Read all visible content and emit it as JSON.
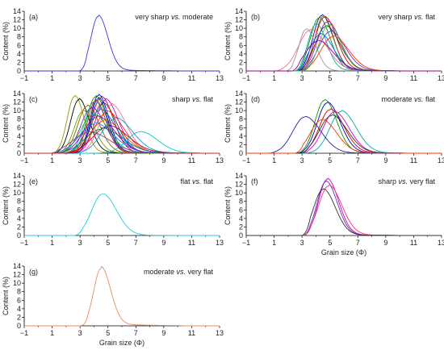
{
  "chart_data": [
    {
      "type": "line",
      "panel": "(a)",
      "title": "very sharp vs. moderate",
      "title_italic_part": "vs.",
      "ylabel": "Content (%)",
      "xlabel": "",
      "xlim": [
        -1,
        13
      ],
      "ylim": [
        0,
        14
      ],
      "xticks": [
        "-1",
        "1",
        "3",
        "5",
        "7",
        "9",
        "11",
        "13"
      ],
      "yticks": [
        "2",
        "4",
        "6",
        "8",
        "10",
        "12",
        "14"
      ],
      "series": [
        {
          "color": "#3a3ad8",
          "peak_x": 4.3,
          "peak_y": 12.8,
          "width": 0.55,
          "start": 2.9,
          "end": 10.5,
          "tail": 0.22
        }
      ]
    },
    {
      "type": "line",
      "panel": "(b)",
      "title": "very sharp vs. flat",
      "title_italic_part": "vs.",
      "ylabel": "Content (%)",
      "xlabel": "",
      "xlim": [
        -1,
        13
      ],
      "ylim": [
        0,
        14
      ],
      "xticks": [
        "-1",
        "1",
        "3",
        "5",
        "7",
        "9",
        "11",
        "13"
      ],
      "yticks": [
        "2",
        "4",
        "6",
        "8",
        "10",
        "12",
        "14"
      ],
      "series": [
        {
          "color": "#0000cc",
          "peak_x": 4.4,
          "peak_y": 13.0,
          "width": 0.65,
          "start": 2.6,
          "end": 9.5,
          "tail": 0.15
        },
        {
          "color": "#cc0000",
          "peak_x": 4.6,
          "peak_y": 12.6,
          "width": 0.7,
          "start": 2.7,
          "end": 9.6,
          "tail": 0.15
        },
        {
          "color": "#009900",
          "peak_x": 4.2,
          "peak_y": 12.4,
          "width": 0.65,
          "start": 2.5,
          "end": 9.4,
          "tail": 0.15
        },
        {
          "color": "#cc00cc",
          "peak_x": 4.8,
          "peak_y": 11.5,
          "width": 0.75,
          "start": 2.8,
          "end": 9.8,
          "tail": 0.18
        },
        {
          "color": "#00aaaa",
          "peak_x": 4.0,
          "peak_y": 11.0,
          "width": 0.6,
          "start": 2.4,
          "end": 9.2,
          "tail": 0.12
        },
        {
          "color": "#886600",
          "peak_x": 4.5,
          "peak_y": 12.8,
          "width": 0.6,
          "start": 2.8,
          "end": 9.5,
          "tail": 0.12
        },
        {
          "color": "#333333",
          "peak_x": 4.7,
          "peak_y": 10.4,
          "width": 0.8,
          "start": 2.7,
          "end": 10.0,
          "tail": 0.2
        },
        {
          "color": "#ff6699",
          "peak_x": 3.6,
          "peak_y": 9.6,
          "width": 0.9,
          "start": 1.0,
          "end": 9.8,
          "tail": 0.2
        },
        {
          "color": "#999999",
          "peak_x": 3.3,
          "peak_y": 9.8,
          "width": 0.55,
          "start": 1.8,
          "end": 8.5,
          "tail": 0.1
        },
        {
          "color": "#6633cc",
          "peak_x": 5.0,
          "peak_y": 9.2,
          "width": 0.85,
          "start": 2.9,
          "end": 10.2,
          "tail": 0.25
        },
        {
          "color": "#0066ff",
          "peak_x": 4.3,
          "peak_y": 8.6,
          "width": 0.75,
          "start": 2.6,
          "end": 9.6,
          "tail": 0.2
        },
        {
          "color": "#ff3300",
          "peak_x": 5.2,
          "peak_y": 8.0,
          "width": 0.9,
          "start": 3.0,
          "end": 10.5,
          "tail": 0.25
        },
        {
          "color": "#33cc33",
          "peak_x": 4.9,
          "peak_y": 10.8,
          "width": 0.7,
          "start": 2.9,
          "end": 9.8,
          "tail": 0.15
        },
        {
          "color": "#990099",
          "peak_x": 4.1,
          "peak_y": 7.0,
          "width": 0.9,
          "start": 2.3,
          "end": 10.0,
          "tail": 0.25
        }
      ]
    },
    {
      "type": "line",
      "panel": "(c)",
      "title": "sharp vs. flat",
      "title_italic_part": "vs.",
      "ylabel": "Content (%)",
      "xlabel": "",
      "xlim": [
        -1,
        13
      ],
      "ylim": [
        0,
        14
      ],
      "xticks": [
        "-1",
        "1",
        "3",
        "5",
        "7",
        "9",
        "11",
        "13"
      ],
      "yticks": [
        "2",
        "4",
        "6",
        "8",
        "10",
        "12",
        "14"
      ],
      "series": [
        {
          "color": "#999900",
          "peak_x": 2.6,
          "peak_y": 13.3,
          "width": 0.55,
          "start": 0.8,
          "end": 9.0,
          "tail": 0.2
        },
        {
          "color": "#000000",
          "peak_x": 2.9,
          "peak_y": 12.5,
          "width": 0.6,
          "start": 0.9,
          "end": 9.5,
          "tail": 0.25
        },
        {
          "color": "#0000cc",
          "peak_x": 4.3,
          "peak_y": 13.5,
          "width": 0.6,
          "start": 1.5,
          "end": 10.0,
          "tail": 0.2
        },
        {
          "color": "#cc0000",
          "peak_x": 4.5,
          "peak_y": 13.0,
          "width": 0.7,
          "start": 1.6,
          "end": 10.2,
          "tail": 0.25
        },
        {
          "color": "#009900",
          "peak_x": 4.1,
          "peak_y": 13.2,
          "width": 0.65,
          "start": 1.4,
          "end": 9.8,
          "tail": 0.2
        },
        {
          "color": "#cc00cc",
          "peak_x": 4.8,
          "peak_y": 12.4,
          "width": 0.75,
          "start": 1.8,
          "end": 10.5,
          "tail": 0.3
        },
        {
          "color": "#00aaaa",
          "peak_x": 4.0,
          "peak_y": 12.0,
          "width": 0.7,
          "start": 1.5,
          "end": 10.2,
          "tail": 0.3
        },
        {
          "color": "#886600",
          "peak_x": 3.5,
          "peak_y": 11.0,
          "width": 0.7,
          "start": 1.2,
          "end": 9.8,
          "tail": 0.25
        },
        {
          "color": "#333333",
          "peak_x": 4.6,
          "peak_y": 11.5,
          "width": 0.8,
          "start": 1.6,
          "end": 10.6,
          "tail": 0.3
        },
        {
          "color": "#ff6699",
          "peak_x": 5.2,
          "peak_y": 11.2,
          "width": 0.85,
          "start": 2.0,
          "end": 11.0,
          "tail": 0.35
        },
        {
          "color": "#6633cc",
          "peak_x": 3.8,
          "peak_y": 10.5,
          "width": 0.8,
          "start": 1.3,
          "end": 10.0,
          "tail": 0.3
        },
        {
          "color": "#0066ff",
          "peak_x": 4.4,
          "peak_y": 10.0,
          "width": 0.9,
          "start": 1.5,
          "end": 10.8,
          "tail": 0.35
        },
        {
          "color": "#ff3300",
          "peak_x": 4.9,
          "peak_y": 9.5,
          "width": 0.95,
          "start": 1.7,
          "end": 11.2,
          "tail": 0.4
        },
        {
          "color": "#33cc33",
          "peak_x": 3.9,
          "peak_y": 9.0,
          "width": 0.9,
          "start": 1.2,
          "end": 10.5,
          "tail": 0.35
        },
        {
          "color": "#990099",
          "peak_x": 4.2,
          "peak_y": 8.4,
          "width": 1.0,
          "start": 1.3,
          "end": 11.0,
          "tail": 0.4
        },
        {
          "color": "#0099cc",
          "peak_x": 5.5,
          "peak_y": 8.0,
          "width": 1.0,
          "start": 2.2,
          "end": 11.5,
          "tail": 0.45
        },
        {
          "color": "#66aa00",
          "peak_x": 3.2,
          "peak_y": 9.8,
          "width": 0.65,
          "start": 1.0,
          "end": 9.5,
          "tail": 0.25
        },
        {
          "color": "#cc6600",
          "peak_x": 4.7,
          "peak_y": 7.5,
          "width": 1.05,
          "start": 1.6,
          "end": 11.5,
          "tail": 0.45
        },
        {
          "color": "#3366ff",
          "peak_x": 4.0,
          "peak_y": 6.8,
          "width": 1.1,
          "start": 1.1,
          "end": 11.2,
          "tail": 0.5
        },
        {
          "color": "#aa0044",
          "peak_x": 5.0,
          "peak_y": 6.2,
          "width": 1.15,
          "start": 1.8,
          "end": 12.0,
          "tail": 0.5
        },
        {
          "color": "#008866",
          "peak_x": 4.5,
          "peak_y": 5.6,
          "width": 1.2,
          "start": 1.4,
          "end": 11.8,
          "tail": 0.55
        },
        {
          "color": "#00cccc",
          "peak_x": 7.3,
          "peak_y": 5.0,
          "width": 1.0,
          "start": 3.0,
          "end": 12.0,
          "tail": 0.2
        },
        {
          "color": "#884488",
          "peak_x": 3.6,
          "peak_y": 4.8,
          "width": 1.2,
          "start": 0.9,
          "end": 11.0,
          "tail": 0.5
        },
        {
          "color": "#2222aa",
          "peak_x": 4.3,
          "peak_y": 12.8,
          "width": 0.55,
          "start": 1.5,
          "end": 9.8,
          "tail": 0.2
        },
        {
          "color": "#dd2222",
          "peak_x": 4.1,
          "peak_y": 12.2,
          "width": 0.6,
          "start": 1.4,
          "end": 9.8,
          "tail": 0.25
        }
      ]
    },
    {
      "type": "line",
      "panel": "(d)",
      "title": "moderate vs. flat",
      "title_italic_part": "vs.",
      "ylabel": "Content (%)",
      "xlabel": "",
      "xlim": [
        -1,
        13
      ],
      "ylim": [
        0,
        14
      ],
      "xticks": [
        "-1",
        "1",
        "3",
        "5",
        "7",
        "9",
        "11",
        "13"
      ],
      "yticks": [
        "2",
        "4",
        "6",
        "8",
        "10",
        "12",
        "14"
      ],
      "series": [
        {
          "color": "#009900",
          "peak_x": 4.6,
          "peak_y": 12.4,
          "width": 0.7,
          "start": 2.5,
          "end": 10.0,
          "tail": 0.15
        },
        {
          "color": "#0000cc",
          "peak_x": 4.8,
          "peak_y": 11.8,
          "width": 0.75,
          "start": 2.6,
          "end": 10.2,
          "tail": 0.15
        },
        {
          "color": "#cc0000",
          "peak_x": 5.0,
          "peak_y": 10.2,
          "width": 0.8,
          "start": 2.8,
          "end": 10.4,
          "tail": 0.18
        },
        {
          "color": "#cc00cc",
          "peak_x": 5.3,
          "peak_y": 9.6,
          "width": 0.85,
          "start": 2.9,
          "end": 10.6,
          "tail": 0.2
        },
        {
          "color": "#00aaaa",
          "peak_x": 5.8,
          "peak_y": 9.8,
          "width": 0.85,
          "start": 3.0,
          "end": 10.8,
          "tail": 0.2
        },
        {
          "color": "#333333",
          "peak_x": 5.1,
          "peak_y": 8.8,
          "width": 0.9,
          "start": 2.9,
          "end": 10.6,
          "tail": 0.22
        },
        {
          "color": "#2222aa",
          "peak_x": 3.2,
          "peak_y": 8.5,
          "width": 0.9,
          "start": 0.5,
          "end": 9.0,
          "tail": 0.15
        },
        {
          "color": "#ff3300",
          "peak_x": 4.4,
          "peak_y": 7.8,
          "width": 0.85,
          "start": 2.5,
          "end": 10.2,
          "tail": 0.2
        }
      ]
    },
    {
      "type": "line",
      "panel": "(e)",
      "title": "flat vs. flat",
      "title_italic_part": "vs.",
      "ylabel": "Content (%)",
      "xlabel": "",
      "xlim": [
        -1,
        13
      ],
      "ylim": [
        0,
        14
      ],
      "xticks": [
        "-1",
        "1",
        "3",
        "5",
        "7",
        "9",
        "11",
        "13"
      ],
      "yticks": [
        "2",
        "4",
        "6",
        "8",
        "10",
        "12",
        "14"
      ],
      "series": [
        {
          "color": "#22ccdd",
          "peak_x": 4.6,
          "peak_y": 9.7,
          "width": 0.8,
          "start": 2.6,
          "end": 10.2,
          "tail": 0.12
        }
      ]
    },
    {
      "type": "line",
      "panel": "(f)",
      "title": "sharp vs. very flat",
      "title_italic_part": "vs.",
      "ylabel": "Content (%)",
      "xlabel": "Grain size (Φ)",
      "xlim": [
        -1,
        13
      ],
      "ylim": [
        0,
        14
      ],
      "xticks": [
        "-1",
        "1",
        "3",
        "5",
        "7",
        "9",
        "11",
        "13"
      ],
      "yticks": [
        "2",
        "4",
        "6",
        "8",
        "10",
        "12",
        "14"
      ],
      "series": [
        {
          "color": "#cc00cc",
          "peak_x": 4.8,
          "peak_y": 13.2,
          "width": 0.65,
          "start": 3.0,
          "end": 10.0,
          "tail": 0.15
        },
        {
          "color": "#6633cc",
          "peak_x": 4.7,
          "peak_y": 12.6,
          "width": 0.65,
          "start": 3.0,
          "end": 9.8,
          "tail": 0.15
        },
        {
          "color": "#ff3366",
          "peak_x": 4.9,
          "peak_y": 11.6,
          "width": 0.75,
          "start": 3.1,
          "end": 10.2,
          "tail": 0.2
        },
        {
          "color": "#333333",
          "peak_x": 4.5,
          "peak_y": 10.8,
          "width": 0.7,
          "start": 3.0,
          "end": 9.8,
          "tail": 0.15
        }
      ]
    },
    {
      "type": "line",
      "panel": "(g)",
      "title": "moderate vs. very flat",
      "title_italic_part": "vs.",
      "ylabel": "Content (%)",
      "xlabel": "Grain size (Φ)",
      "xlim": [
        -1,
        13
      ],
      "ylim": [
        0,
        14
      ],
      "xticks": [
        "-1",
        "1",
        "3",
        "5",
        "7",
        "9",
        "11",
        "13"
      ],
      "yticks": [
        "2",
        "4",
        "6",
        "8",
        "10",
        "12",
        "14"
      ],
      "series": [
        {
          "color": "#ee8855",
          "peak_x": 4.5,
          "peak_y": 13.4,
          "width": 0.55,
          "start": 3.0,
          "end": 10.5,
          "tail": 0.35
        }
      ]
    }
  ]
}
